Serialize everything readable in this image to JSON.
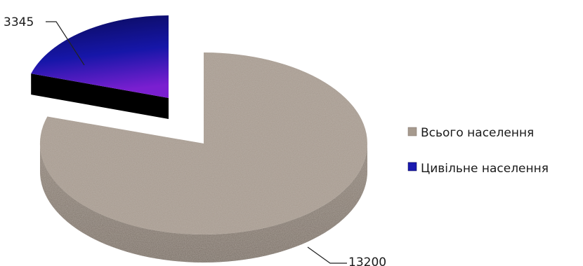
{
  "chart_data": {
    "type": "pie",
    "title": "",
    "categories": [
      "Всього населення",
      "Цивільне населення"
    ],
    "values": [
      13200,
      3345
    ],
    "data_labels": [
      "13200",
      "3345"
    ],
    "legend_position": "right",
    "colors": {
      "Всього населення": "#a69a8e",
      "Цивільне населення": "#1a1ab0"
    },
    "style": "3d-exploded"
  }
}
